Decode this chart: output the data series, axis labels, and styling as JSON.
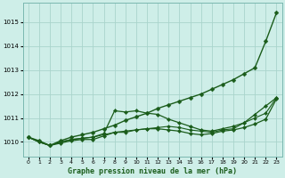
{
  "title": "Graphe pression niveau de la mer (hPa)",
  "background_color": "#ceeee8",
  "grid_color": "#aad4cc",
  "line_color": "#1a5c1a",
  "xlim": [
    -0.5,
    23.5
  ],
  "ylim": [
    1009.4,
    1015.8
  ],
  "yticks": [
    1010,
    1011,
    1012,
    1013,
    1014,
    1015
  ],
  "xticks": [
    0,
    1,
    2,
    3,
    4,
    5,
    6,
    7,
    8,
    9,
    10,
    11,
    12,
    13,
    14,
    15,
    16,
    17,
    18,
    19,
    20,
    21,
    22,
    23
  ],
  "series": [
    {
      "x": [
        0,
        1,
        2,
        3,
        4,
        5,
        6,
        7,
        8,
        9,
        10,
        11,
        12,
        13,
        14,
        15,
        16,
        17,
        18,
        19,
        20,
        21,
        22,
        23
      ],
      "y": [
        1010.2,
        1010.05,
        1009.85,
        1010.05,
        1010.2,
        1010.3,
        1010.4,
        1010.55,
        1010.7,
        1010.9,
        1011.05,
        1011.2,
        1011.4,
        1011.55,
        1011.7,
        1011.85,
        1012.0,
        1012.2,
        1012.4,
        1012.6,
        1012.85,
        1013.1,
        1014.2,
        1015.4
      ],
      "marker": "D",
      "markersize": 2.5,
      "linewidth": 1.0
    },
    {
      "x": [
        0,
        1,
        2,
        3,
        4,
        5,
        6,
        7,
        8,
        9,
        10,
        11,
        12,
        13,
        14,
        15,
        16,
        17,
        18,
        19,
        20,
        21,
        22,
        23
      ],
      "y": [
        1010.2,
        1010.0,
        1009.85,
        1010.0,
        1010.1,
        1010.15,
        1010.2,
        1010.35,
        1011.3,
        1011.25,
        1011.3,
        1011.2,
        1011.15,
        1010.95,
        1010.8,
        1010.65,
        1010.5,
        1010.45,
        1010.55,
        1010.65,
        1010.8,
        1011.15,
        1011.5,
        1011.85
      ],
      "marker": "D",
      "markersize": 2.2,
      "linewidth": 0.9
    },
    {
      "x": [
        0,
        1,
        2,
        3,
        4,
        5,
        6,
        7,
        8,
        9,
        10,
        11,
        12,
        13,
        14,
        15,
        16,
        17,
        18,
        19,
        20,
        21,
        22,
        23
      ],
      "y": [
        1010.2,
        1010.0,
        1009.85,
        1009.95,
        1010.05,
        1010.1,
        1010.1,
        1010.25,
        1010.4,
        1010.45,
        1010.5,
        1010.55,
        1010.55,
        1010.5,
        1010.45,
        1010.35,
        1010.3,
        1010.35,
        1010.45,
        1010.5,
        1010.6,
        1010.75,
        1010.95,
        1011.8
      ],
      "marker": "D",
      "markersize": 2.2,
      "linewidth": 0.9
    },
    {
      "x": [
        0,
        1,
        2,
        3,
        4,
        5,
        6,
        7,
        8,
        9,
        10,
        11,
        12,
        13,
        14,
        15,
        16,
        17,
        18,
        19,
        20,
        21,
        22,
        23
      ],
      "y": [
        1010.2,
        1010.0,
        1009.85,
        1010.0,
        1010.1,
        1010.15,
        1010.2,
        1010.3,
        1010.4,
        1010.4,
        1010.5,
        1010.55,
        1010.6,
        1010.65,
        1010.6,
        1010.5,
        1010.45,
        1010.4,
        1010.5,
        1010.55,
        1010.8,
        1011.0,
        1011.2,
        1011.85
      ],
      "marker": "D",
      "markersize": 2.0,
      "linewidth": 0.8
    }
  ]
}
